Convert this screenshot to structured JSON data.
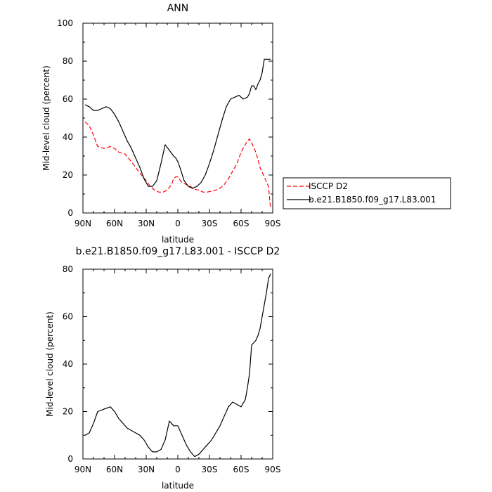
{
  "chart_data": [
    {
      "type": "line",
      "title": "ANN",
      "xlabel": "latitude",
      "ylabel": "Mid-level cloud (percent)",
      "xlim": [
        90,
        -90
      ],
      "ylim": [
        0,
        100
      ],
      "x_ticks": [
        {
          "value": 90,
          "label": "90N"
        },
        {
          "value": 60,
          "label": "60N"
        },
        {
          "value": 30,
          "label": "30N"
        },
        {
          "value": 0,
          "label": "0"
        },
        {
          "value": -30,
          "label": "30S"
        },
        {
          "value": -60,
          "label": "60S"
        },
        {
          "value": -90,
          "label": "90S"
        }
      ],
      "y_ticks": [
        {
          "value": 0,
          "label": "0"
        },
        {
          "value": 20,
          "label": "20"
        },
        {
          "value": 40,
          "label": "40"
        },
        {
          "value": 60,
          "label": "60"
        },
        {
          "value": 80,
          "label": "80"
        },
        {
          "value": 100,
          "label": "100"
        }
      ],
      "grid": false,
      "legend_position": "outside-right",
      "series": [
        {
          "name": "ISCCP D2",
          "color": "#ff0000",
          "dash": true,
          "x": [
            88,
            84,
            80,
            76,
            70,
            64,
            60,
            56,
            50,
            44,
            40,
            36,
            30,
            26,
            22,
            18,
            14,
            10,
            6,
            4,
            2,
            0,
            -4,
            -8,
            -12,
            -16,
            -20,
            -24,
            -28,
            -32,
            -36,
            -40,
            -44,
            -48,
            -52,
            -56,
            -60,
            -64,
            -66,
            -68,
            -70,
            -74,
            -78,
            -82,
            -86,
            -88
          ],
          "y": [
            48,
            46,
            41,
            35,
            34,
            35,
            34,
            32,
            31,
            27,
            24,
            21,
            17,
            14,
            12,
            11,
            11,
            12,
            15,
            18,
            19,
            19,
            16,
            15,
            14,
            12.5,
            12,
            11,
            11,
            11.5,
            12,
            13,
            15,
            18,
            22,
            26,
            32,
            36,
            38,
            39,
            37,
            32,
            24,
            19,
            14,
            2
          ]
        },
        {
          "name": "b.e21.B1850.f09_g17.L83.001",
          "color": "#000000",
          "dash": false,
          "x": [
            88,
            84,
            80,
            76,
            72,
            68,
            64,
            60,
            56,
            52,
            48,
            44,
            40,
            36,
            32,
            28,
            24,
            20,
            16,
            12,
            8,
            4,
            2,
            0,
            -2,
            -6,
            -10,
            -14,
            -18,
            -22,
            -26,
            -30,
            -34,
            -38,
            -42,
            -46,
            -50,
            -54,
            -58,
            -62,
            -66,
            -68,
            -70,
            -72,
            -74,
            -76,
            -78,
            -80,
            -82,
            -84,
            -86,
            -88
          ],
          "y": [
            57,
            56,
            54,
            54,
            55,
            56,
            55,
            52,
            48,
            43,
            38,
            34,
            29,
            24,
            18,
            14,
            14,
            17,
            26,
            36,
            33,
            30,
            29,
            27,
            24,
            17,
            14,
            13,
            14,
            16,
            20,
            26,
            33,
            41,
            49,
            56,
            60,
            61,
            62,
            60,
            61,
            63,
            67,
            67,
            65,
            68,
            70,
            74,
            81,
            81,
            81,
            81
          ]
        }
      ]
    },
    {
      "type": "line",
      "title": "b.e21.B1850.f09_g17.L83.001  - ISCCP D2",
      "xlabel": "latitude",
      "ylabel": "Mid-level cloud (percent)",
      "xlim": [
        90,
        -90
      ],
      "ylim": [
        0,
        80
      ],
      "x_ticks": [
        {
          "value": 90,
          "label": "90N"
        },
        {
          "value": 60,
          "label": "60N"
        },
        {
          "value": 30,
          "label": "30N"
        },
        {
          "value": 0,
          "label": "0"
        },
        {
          "value": -30,
          "label": "30S"
        },
        {
          "value": -60,
          "label": "60S"
        },
        {
          "value": -90,
          "label": "90S"
        }
      ],
      "y_ticks": [
        {
          "value": 0,
          "label": "0"
        },
        {
          "value": 20,
          "label": "20"
        },
        {
          "value": 40,
          "label": "40"
        },
        {
          "value": 60,
          "label": "60"
        },
        {
          "value": 80,
          "label": "80"
        }
      ],
      "grid": false,
      "series": [
        {
          "color": "#000000",
          "dash": false,
          "x": [
            88,
            84,
            80,
            76,
            70,
            64,
            60,
            56,
            52,
            48,
            44,
            40,
            36,
            32,
            28,
            24,
            20,
            16,
            12,
            8,
            4,
            0,
            -4,
            -8,
            -12,
            -16,
            -20,
            -24,
            -28,
            -32,
            -36,
            -40,
            -44,
            -48,
            -52,
            -56,
            -60,
            -64,
            -66,
            -68,
            -70,
            -72,
            -74,
            -76,
            -78,
            -80,
            -82,
            -84,
            -86,
            -88
          ],
          "y": [
            10,
            11,
            15,
            20,
            21,
            22,
            20,
            17,
            15,
            13,
            12,
            11,
            10,
            8,
            5,
            3,
            3,
            4,
            8,
            16,
            14,
            14,
            10,
            6,
            3,
            1,
            2,
            4,
            6,
            8,
            11,
            14,
            18,
            22,
            24,
            23,
            22,
            25,
            30,
            36,
            48,
            49,
            50,
            52,
            55,
            60,
            65,
            70,
            76,
            78
          ]
        }
      ]
    }
  ]
}
